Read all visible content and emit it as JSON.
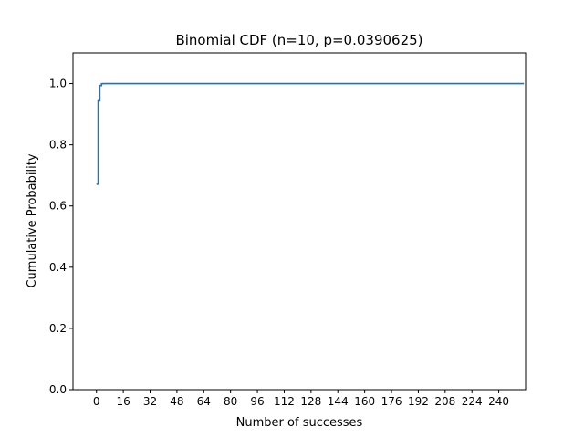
{
  "chart_data": {
    "type": "line",
    "title": "Binomial CDF (n=10, p=0.0390625)",
    "xlabel": "Number of successes",
    "ylabel": "Cumulative Probability",
    "xlim": [
      -14,
      256
    ],
    "ylim": [
      0,
      1.1
    ],
    "xticks": [
      0,
      16,
      32,
      48,
      64,
      80,
      96,
      112,
      128,
      144,
      160,
      176,
      192,
      208,
      224,
      240
    ],
    "yticks": [
      0.0,
      0.2,
      0.4,
      0.6,
      0.8,
      1.0
    ],
    "ytick_labels": [
      "0.0",
      "0.2",
      "0.4",
      "0.6",
      "0.8",
      "1.0"
    ],
    "grid": false,
    "series": [
      {
        "color": "#1f77b4",
        "step": "post",
        "x": [
          0,
          1,
          2,
          3,
          4,
          5,
          10,
          255
        ],
        "y": [
          0.6711,
          0.9438,
          0.9937,
          0.9995,
          1.0,
          1.0,
          1.0,
          1.0
        ]
      }
    ]
  }
}
